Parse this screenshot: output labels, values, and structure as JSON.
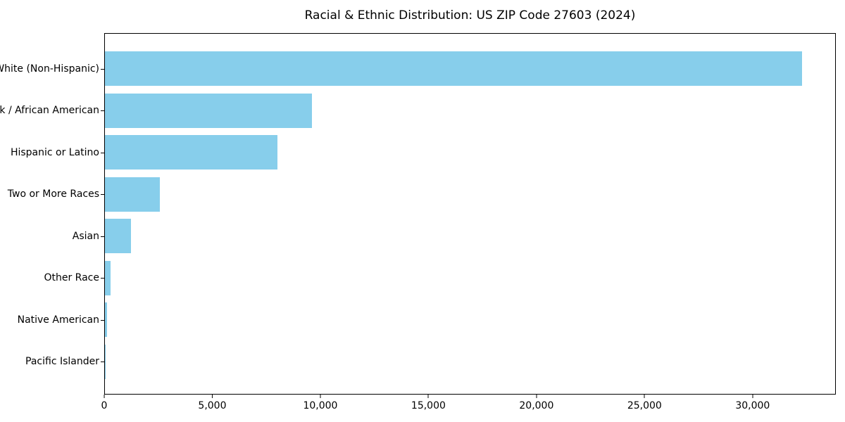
{
  "title": "Racial & Ethnic Distribution: US ZIP Code 27603 (2024)",
  "chart_data": {
    "type": "bar",
    "orientation": "horizontal",
    "title": "Racial & Ethnic Distribution: US ZIP Code 27603 (2024)",
    "categories": [
      "White (Non-Hispanic)",
      "Black / African American",
      "Hispanic or Latino",
      "Two or More Races",
      "Asian",
      "Other Race",
      "Native American",
      "Pacific Islander"
    ],
    "values": [
      32300,
      9600,
      8000,
      2550,
      1200,
      250,
      100,
      15
    ],
    "xlabel": "",
    "ylabel": "",
    "xlim": [
      0,
      33850
    ],
    "xticks": [
      0,
      5000,
      10000,
      15000,
      20000,
      25000,
      30000
    ],
    "xtick_labels": [
      "0",
      "5,000",
      "10,000",
      "15,000",
      "20,000",
      "25,000",
      "30,000"
    ],
    "bar_color": "#87CEEB",
    "axis_color": "#000000",
    "background_color": "#FFFFFF",
    "grid": false,
    "legend": null
  }
}
